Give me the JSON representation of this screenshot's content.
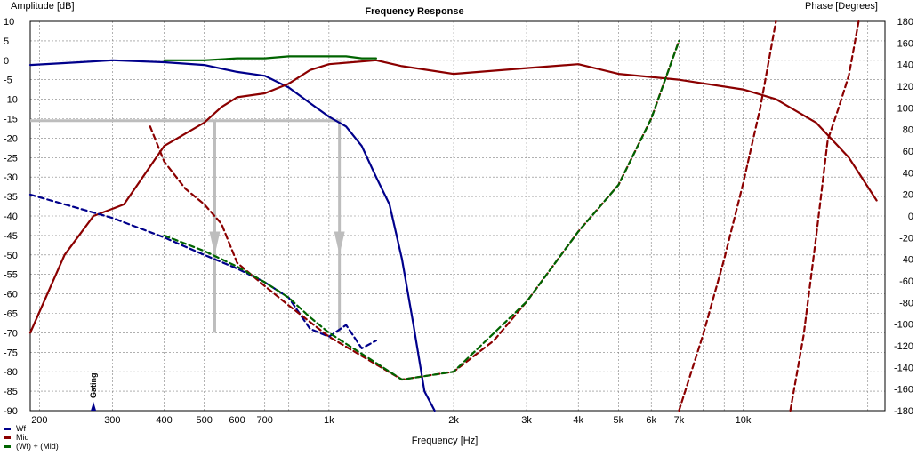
{
  "chart_data": {
    "type": "line",
    "title": "Frequency Response",
    "xlabel": "Frequency [Hz]",
    "ylabel": "Amplitude [dB]",
    "ylabel_right": "Phase [Degrees]",
    "x_scale": "log",
    "xlim": [
      190,
      22000
    ],
    "ylim": [
      -90,
      10
    ],
    "ylim_right": [
      -180,
      180
    ],
    "grid": true,
    "x_tick_labels": [
      "200",
      "300",
      "400",
      "500",
      "600",
      "700",
      "1k",
      "2k",
      "3k",
      "4k",
      "5k",
      "6k",
      "7k",
      "10k"
    ],
    "x_ticks": [
      200,
      300,
      400,
      500,
      600,
      700,
      1000,
      2000,
      3000,
      4000,
      5000,
      6000,
      7000,
      10000
    ],
    "y_ticks_left": [
      10,
      5,
      0,
      -5,
      -10,
      -15,
      -20,
      -25,
      -30,
      -35,
      -40,
      -45,
      -50,
      -55,
      -60,
      -65,
      -70,
      -75,
      -80,
      -85,
      -90
    ],
    "y_ticks_right": [
      180,
      160,
      140,
      120,
      100,
      80,
      60,
      40,
      20,
      0,
      -20,
      -40,
      -60,
      -80,
      -100,
      -120,
      -140,
      -160,
      -180
    ],
    "gating_label": "Gating",
    "gating_x": 270,
    "legend_position": "bottom-left",
    "colors": {
      "wf": "#00008b",
      "mid": "#8b0000",
      "sum": "#006400",
      "marker": "#bdbdbd"
    },
    "series": [
      {
        "name": "Wf",
        "axis": "left",
        "style": "solid",
        "color": "#00008b",
        "x": [
          190,
          250,
          300,
          400,
          500,
          600,
          700,
          800,
          900,
          1000,
          1100,
          1200,
          1300,
          1400,
          1500,
          1600,
          1700,
          1800
        ],
        "y": [
          -1.2,
          -0.5,
          0,
          -0.5,
          -1.2,
          -3,
          -4,
          -7,
          -11,
          -14.5,
          -17,
          -22,
          -30,
          -37,
          -51,
          -68,
          -85,
          -90
        ]
      },
      {
        "name": "Mid",
        "axis": "left",
        "style": "solid",
        "color": "#8b0000",
        "x": [
          190,
          230,
          270,
          320,
          400,
          500,
          550,
          600,
          700,
          800,
          900,
          1000,
          1300,
          1500,
          2000,
          3000,
          4000,
          5000,
          7000,
          10000,
          12000,
          15000,
          18000,
          21000
        ],
        "y": [
          -70,
          -50,
          -40,
          -37,
          -22,
          -16,
          -12,
          -9.5,
          -8.5,
          -6,
          -2.5,
          -1,
          0,
          -1.5,
          -3.5,
          -2,
          -1,
          -3.5,
          -5,
          -7.5,
          -10,
          -16,
          -25,
          -36
        ]
      },
      {
        "name": "(Wf) + (Mid)",
        "axis": "left",
        "style": "solid",
        "color": "#006400",
        "x": [
          400,
          500,
          600,
          700,
          800,
          900,
          1000,
          1100,
          1200,
          1300
        ],
        "y": [
          0,
          0,
          0.5,
          0.5,
          1,
          1,
          1,
          1,
          0.5,
          0.5
        ]
      },
      {
        "name": "Wf",
        "axis": "left",
        "style": "dashed",
        "color": "#00008b",
        "x": [
          190,
          300,
          400,
          500,
          600,
          700,
          800,
          900,
          1000,
          1100,
          1200,
          1300
        ],
        "y": [
          -34.5,
          -40.5,
          -45.5,
          -50,
          -53.5,
          -57,
          -61,
          -69,
          -71,
          -68,
          -74,
          -72
        ]
      },
      {
        "name": "Mid",
        "axis": "left",
        "style": "dashed",
        "color": "#8b0000",
        "x": [
          370,
          400,
          450,
          500,
          550,
          600,
          700,
          800,
          1000,
          1500,
          2000,
          2500,
          3000,
          4000,
          5000,
          6000,
          7000
        ],
        "y": [
          -17,
          -26,
          -33,
          -37,
          -42,
          -52,
          -58,
          -63,
          -71,
          -82,
          -80,
          -72,
          -62,
          -44,
          -32,
          -15,
          5
        ]
      },
      {
        "name": "(Wf) + (Mid)",
        "axis": "left",
        "style": "dashed",
        "color": "#006400",
        "x": [
          400,
          500,
          600,
          700,
          800,
          900,
          1000,
          1500,
          2000,
          3000,
          4000,
          5000,
          6000,
          7000
        ],
        "y": [
          -45,
          -49,
          -53,
          -57,
          -61,
          -66,
          -70,
          -82,
          -80,
          -62,
          -44,
          -32,
          -15,
          5
        ]
      },
      {
        "name": "Mid",
        "axis": "right",
        "style": "dashed",
        "color": "#8b0000",
        "x": [
          7000,
          8000,
          9000,
          10000,
          11000,
          12000
        ],
        "y": [
          -180,
          -110,
          -40,
          30,
          100,
          180
        ]
      },
      {
        "name": "Mid",
        "axis": "right",
        "style": "dashed",
        "color": "#8b0000",
        "x": [
          13000,
          14000,
          15000,
          16000,
          17000,
          18000,
          19000
        ],
        "y": [
          -180,
          -110,
          -20,
          70,
          100,
          130,
          180
        ]
      }
    ]
  }
}
